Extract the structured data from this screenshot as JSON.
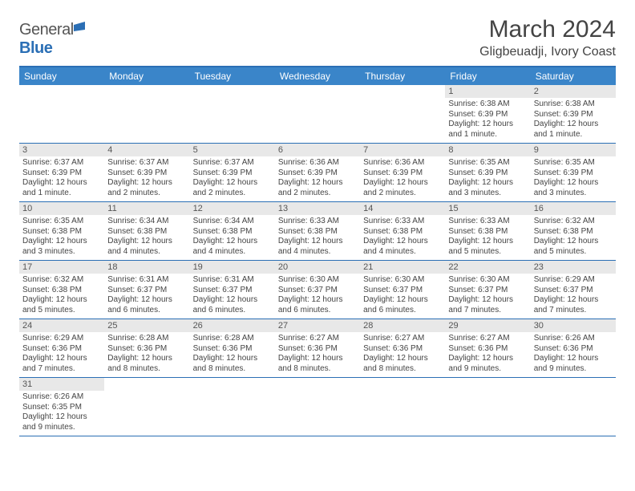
{
  "logo": {
    "textA": "General",
    "textB": "Blue"
  },
  "title": "March 2024",
  "location": "Gligbeuadji, Ivory Coast",
  "colors": {
    "header_bg": "#3a85c9",
    "border": "#2b6fb5",
    "daynum_bg": "#e8e8e8",
    "text": "#444444",
    "logo_blue": "#2b6fb5"
  },
  "dayHeaders": [
    "Sunday",
    "Monday",
    "Tuesday",
    "Wednesday",
    "Thursday",
    "Friday",
    "Saturday"
  ],
  "weeks": [
    [
      null,
      null,
      null,
      null,
      null,
      {
        "n": "1",
        "sr": "6:38 AM",
        "ss": "6:39 PM",
        "dl": "12 hours and 1 minute."
      },
      {
        "n": "2",
        "sr": "6:38 AM",
        "ss": "6:39 PM",
        "dl": "12 hours and 1 minute."
      }
    ],
    [
      {
        "n": "3",
        "sr": "6:37 AM",
        "ss": "6:39 PM",
        "dl": "12 hours and 1 minute."
      },
      {
        "n": "4",
        "sr": "6:37 AM",
        "ss": "6:39 PM",
        "dl": "12 hours and 2 minutes."
      },
      {
        "n": "5",
        "sr": "6:37 AM",
        "ss": "6:39 PM",
        "dl": "12 hours and 2 minutes."
      },
      {
        "n": "6",
        "sr": "6:36 AM",
        "ss": "6:39 PM",
        "dl": "12 hours and 2 minutes."
      },
      {
        "n": "7",
        "sr": "6:36 AM",
        "ss": "6:39 PM",
        "dl": "12 hours and 2 minutes."
      },
      {
        "n": "8",
        "sr": "6:35 AM",
        "ss": "6:39 PM",
        "dl": "12 hours and 3 minutes."
      },
      {
        "n": "9",
        "sr": "6:35 AM",
        "ss": "6:39 PM",
        "dl": "12 hours and 3 minutes."
      }
    ],
    [
      {
        "n": "10",
        "sr": "6:35 AM",
        "ss": "6:38 PM",
        "dl": "12 hours and 3 minutes."
      },
      {
        "n": "11",
        "sr": "6:34 AM",
        "ss": "6:38 PM",
        "dl": "12 hours and 4 minutes."
      },
      {
        "n": "12",
        "sr": "6:34 AM",
        "ss": "6:38 PM",
        "dl": "12 hours and 4 minutes."
      },
      {
        "n": "13",
        "sr": "6:33 AM",
        "ss": "6:38 PM",
        "dl": "12 hours and 4 minutes."
      },
      {
        "n": "14",
        "sr": "6:33 AM",
        "ss": "6:38 PM",
        "dl": "12 hours and 4 minutes."
      },
      {
        "n": "15",
        "sr": "6:33 AM",
        "ss": "6:38 PM",
        "dl": "12 hours and 5 minutes."
      },
      {
        "n": "16",
        "sr": "6:32 AM",
        "ss": "6:38 PM",
        "dl": "12 hours and 5 minutes."
      }
    ],
    [
      {
        "n": "17",
        "sr": "6:32 AM",
        "ss": "6:38 PM",
        "dl": "12 hours and 5 minutes."
      },
      {
        "n": "18",
        "sr": "6:31 AM",
        "ss": "6:37 PM",
        "dl": "12 hours and 6 minutes."
      },
      {
        "n": "19",
        "sr": "6:31 AM",
        "ss": "6:37 PM",
        "dl": "12 hours and 6 minutes."
      },
      {
        "n": "20",
        "sr": "6:30 AM",
        "ss": "6:37 PM",
        "dl": "12 hours and 6 minutes."
      },
      {
        "n": "21",
        "sr": "6:30 AM",
        "ss": "6:37 PM",
        "dl": "12 hours and 6 minutes."
      },
      {
        "n": "22",
        "sr": "6:30 AM",
        "ss": "6:37 PM",
        "dl": "12 hours and 7 minutes."
      },
      {
        "n": "23",
        "sr": "6:29 AM",
        "ss": "6:37 PM",
        "dl": "12 hours and 7 minutes."
      }
    ],
    [
      {
        "n": "24",
        "sr": "6:29 AM",
        "ss": "6:36 PM",
        "dl": "12 hours and 7 minutes."
      },
      {
        "n": "25",
        "sr": "6:28 AM",
        "ss": "6:36 PM",
        "dl": "12 hours and 8 minutes."
      },
      {
        "n": "26",
        "sr": "6:28 AM",
        "ss": "6:36 PM",
        "dl": "12 hours and 8 minutes."
      },
      {
        "n": "27",
        "sr": "6:27 AM",
        "ss": "6:36 PM",
        "dl": "12 hours and 8 minutes."
      },
      {
        "n": "28",
        "sr": "6:27 AM",
        "ss": "6:36 PM",
        "dl": "12 hours and 8 minutes."
      },
      {
        "n": "29",
        "sr": "6:27 AM",
        "ss": "6:36 PM",
        "dl": "12 hours and 9 minutes."
      },
      {
        "n": "30",
        "sr": "6:26 AM",
        "ss": "6:36 PM",
        "dl": "12 hours and 9 minutes."
      }
    ],
    [
      {
        "n": "31",
        "sr": "6:26 AM",
        "ss": "6:35 PM",
        "dl": "12 hours and 9 minutes."
      },
      null,
      null,
      null,
      null,
      null,
      null
    ]
  ],
  "labels": {
    "sunrise": "Sunrise: ",
    "sunset": "Sunset: ",
    "daylight": "Daylight: "
  }
}
